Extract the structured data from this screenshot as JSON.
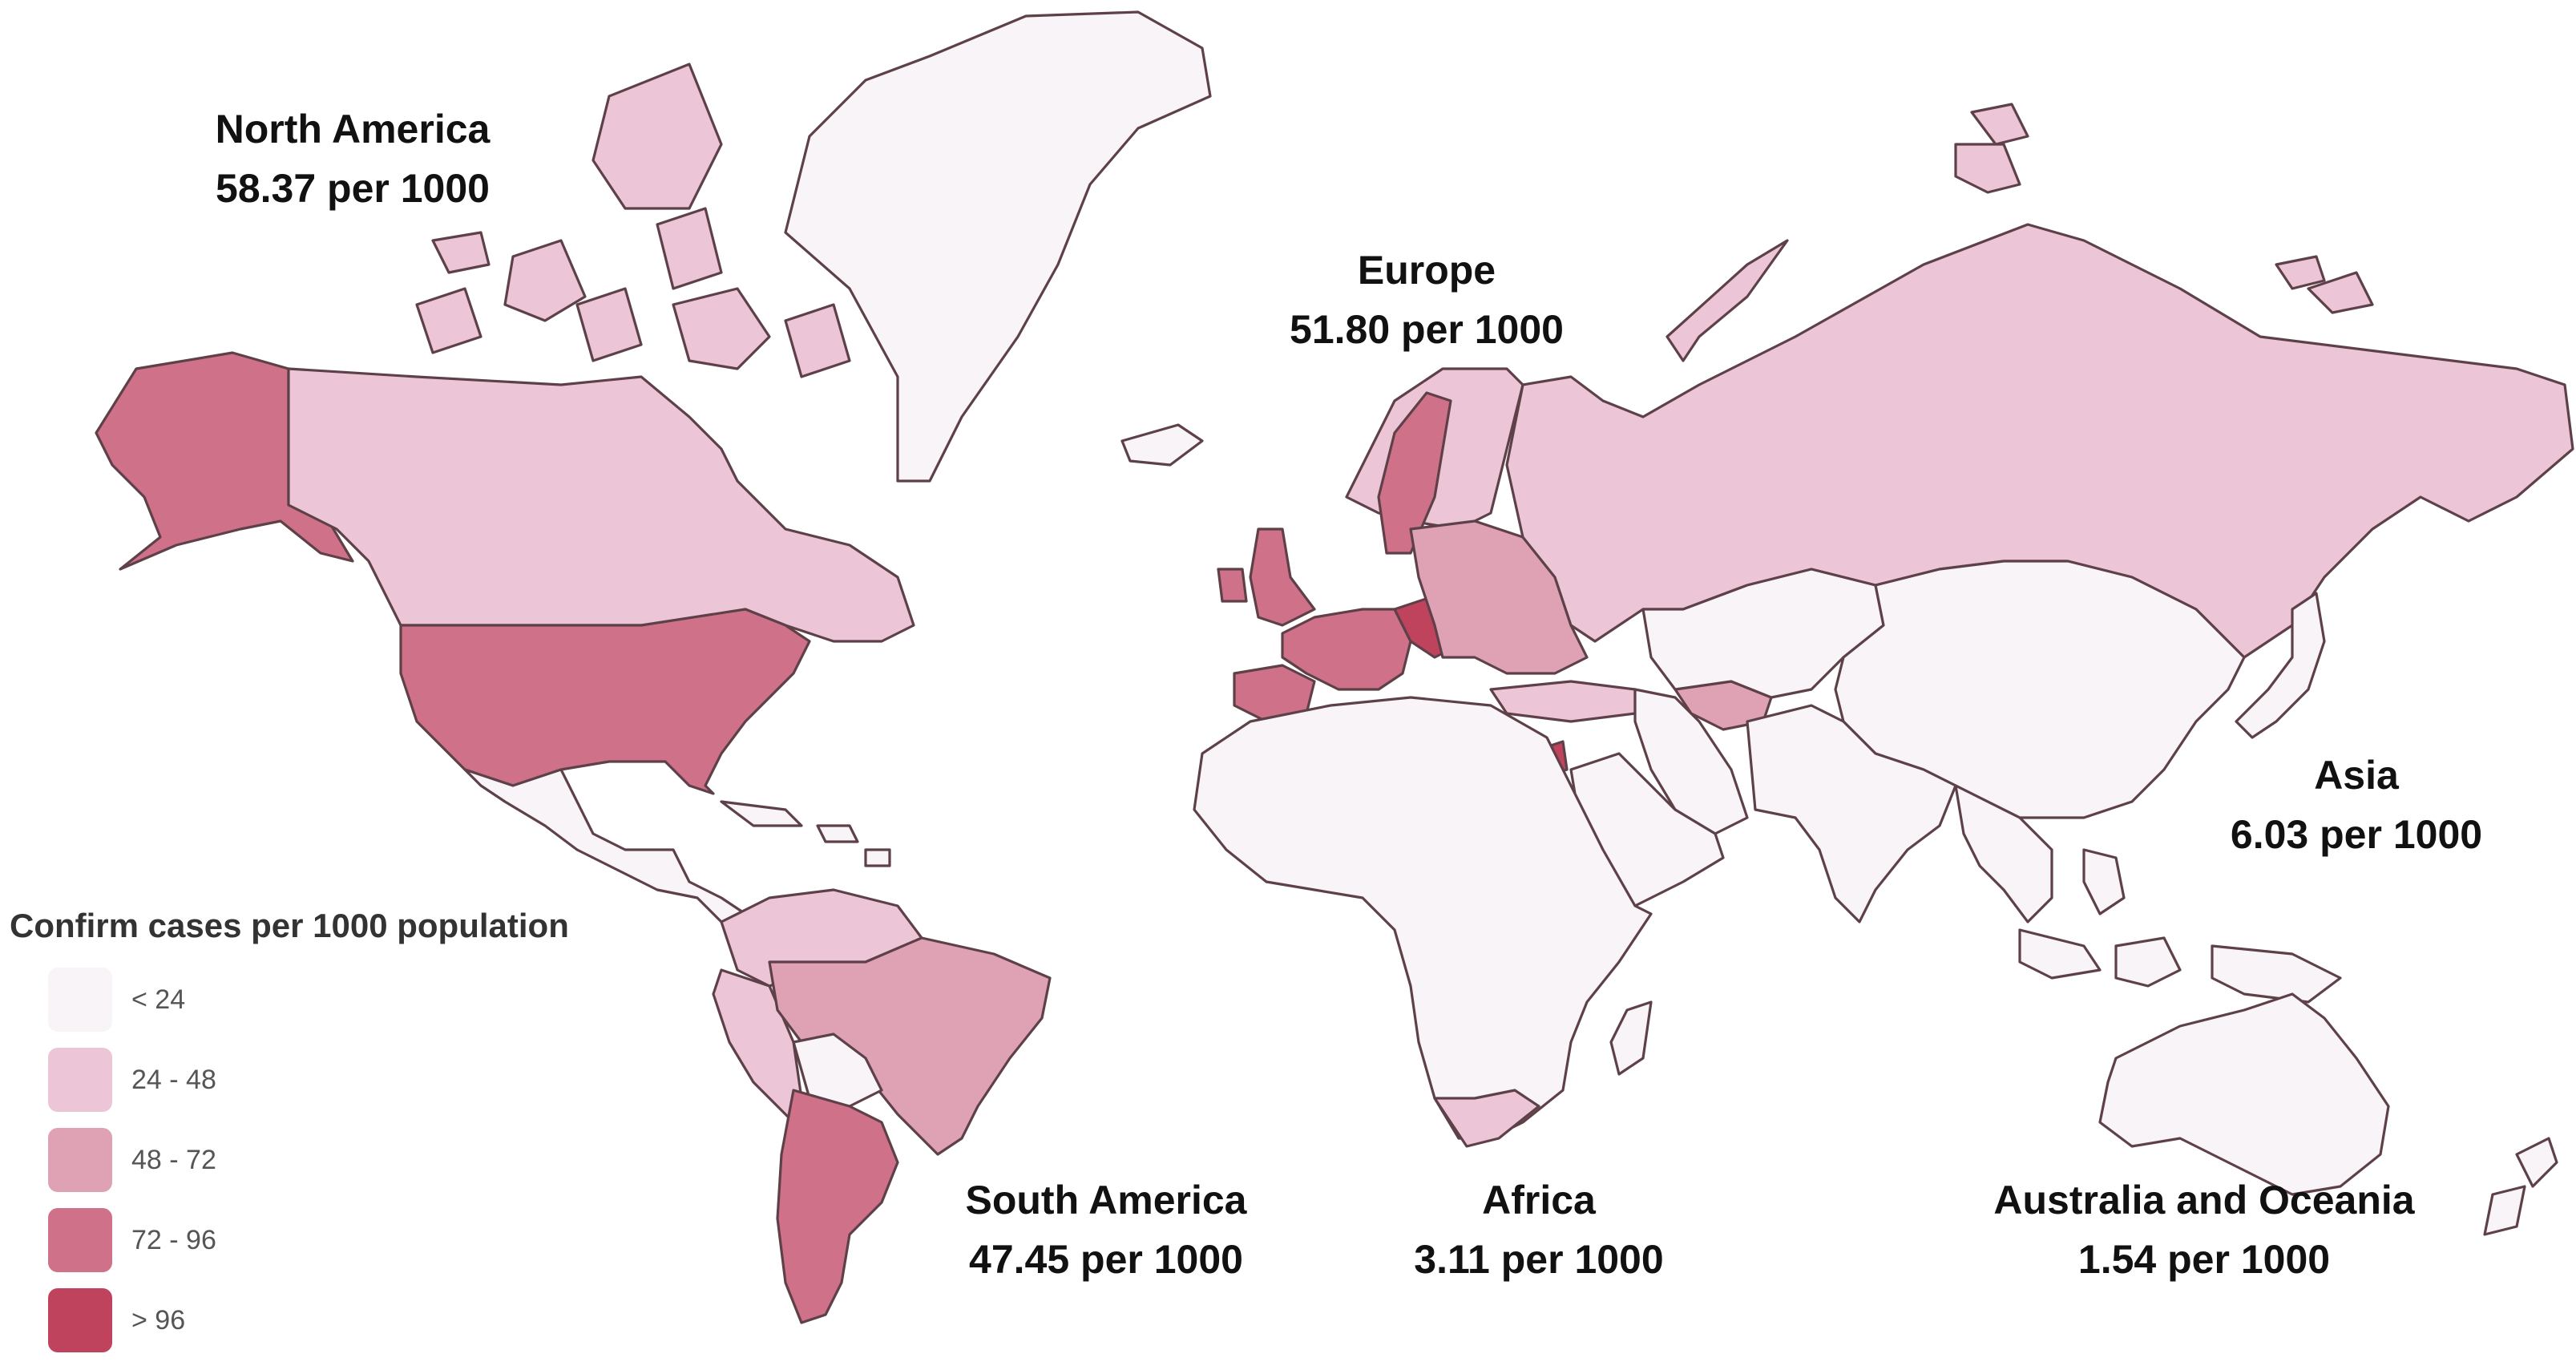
{
  "map": {
    "stroke_color": "#5e4148",
    "color_scale": [
      "#f8f4f8",
      "#ecc6d6",
      "#dea2b4",
      "#cf7188",
      "#c0435e"
    ],
    "regions": [
      {
        "name": "North America",
        "value_text": "58.37 per 1000",
        "value": 58.37
      },
      {
        "name": "Europe",
        "value_text": "51.80 per 1000",
        "value": 51.8
      },
      {
        "name": "Asia",
        "value_text": "6.03 per 1000",
        "value": 6.03
      },
      {
        "name": "South America",
        "value_text": "47.45 per 1000",
        "value": 47.45
      },
      {
        "name": "Africa",
        "value_text": "3.11 per 1000",
        "value": 3.11
      },
      {
        "name": "Australia and Oceania",
        "value_text": "1.54 per 1000",
        "value": 1.54
      }
    ],
    "shapes": [
      {
        "id": "greenland",
        "bin": 0
      },
      {
        "id": "alaska",
        "bin": 3
      },
      {
        "id": "canada",
        "bin": 1
      },
      {
        "id": "canada-islands",
        "bin": 1
      },
      {
        "id": "usa",
        "bin": 3
      },
      {
        "id": "mexico-central-america",
        "bin": 0
      },
      {
        "id": "caribbean",
        "bin": 0
      },
      {
        "id": "colombia-venezuela",
        "bin": 1
      },
      {
        "id": "peru-ecuador",
        "bin": 1
      },
      {
        "id": "brazil",
        "bin": 2
      },
      {
        "id": "bolivia",
        "bin": 0
      },
      {
        "id": "argentina-chile",
        "bin": 3
      },
      {
        "id": "iceland",
        "bin": 0
      },
      {
        "id": "uk-ireland",
        "bin": 3
      },
      {
        "id": "scandinavia",
        "bin": 1
      },
      {
        "id": "sweden",
        "bin": 3
      },
      {
        "id": "western-europe",
        "bin": 3
      },
      {
        "id": "central-europe",
        "bin": 4
      },
      {
        "id": "eastern-europe",
        "bin": 2
      },
      {
        "id": "iberia",
        "bin": 3
      },
      {
        "id": "russia",
        "bin": 1
      },
      {
        "id": "russia-islands",
        "bin": 1
      },
      {
        "id": "turkey",
        "bin": 1
      },
      {
        "id": "caucasus-iran",
        "bin": 0
      },
      {
        "id": "turkmenistan",
        "bin": 2
      },
      {
        "id": "central-asia",
        "bin": 0
      },
      {
        "id": "china-mongolia",
        "bin": 0
      },
      {
        "id": "south-asia",
        "bin": 0
      },
      {
        "id": "southeast-asia",
        "bin": 0
      },
      {
        "id": "japan",
        "bin": 0
      },
      {
        "id": "arabia",
        "bin": 0
      },
      {
        "id": "israel",
        "bin": 4
      },
      {
        "id": "africa",
        "bin": 0
      },
      {
        "id": "south-africa",
        "bin": 1
      },
      {
        "id": "madagascar",
        "bin": 0
      },
      {
        "id": "indonesia",
        "bin": 0
      },
      {
        "id": "australia",
        "bin": 0
      },
      {
        "id": "new-zealand",
        "bin": 0
      }
    ]
  },
  "legend": {
    "title": "Confirm cases per 1000 population",
    "items": [
      {
        "label": "< 24",
        "color": "#f8f4f8"
      },
      {
        "label": "24 - 48",
        "color": "#ecc6d6"
      },
      {
        "label": "48 - 72",
        "color": "#dea2b4"
      },
      {
        "label": "72 - 96",
        "color": "#cf7188"
      },
      {
        "label": "> 96",
        "color": "#c0435e"
      }
    ]
  }
}
